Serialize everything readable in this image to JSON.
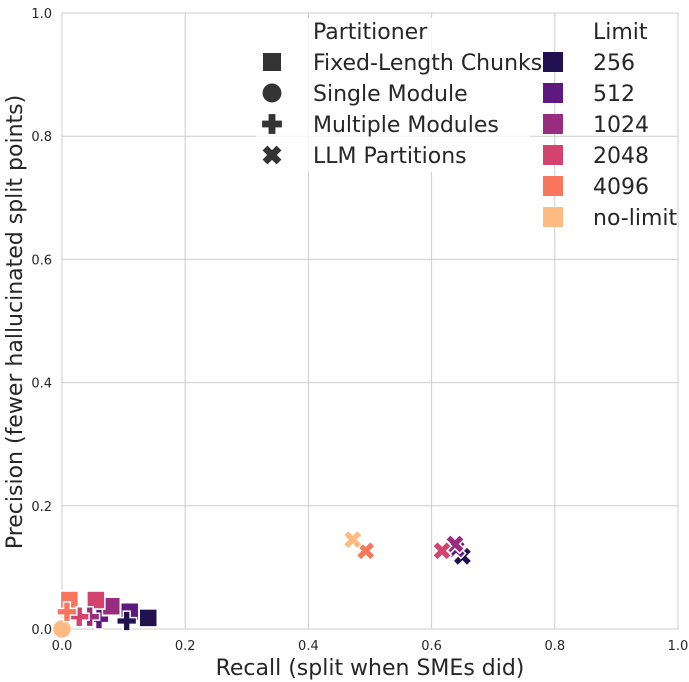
{
  "chart_data": {
    "type": "scatter",
    "title": "",
    "xlabel": "Recall (split when SMEs did)",
    "ylabel": "Precision (fewer hallucinated split points)",
    "xlim": [
      0,
      1
    ],
    "ylim": [
      0,
      1
    ],
    "xticks": [
      "0.0",
      "0.2",
      "0.4",
      "0.6",
      "0.8",
      "1.0"
    ],
    "yticks": [
      "0.0",
      "0.2",
      "0.4",
      "0.6",
      "0.8",
      "1.0"
    ],
    "grid": true,
    "legend": {
      "placement": "top-right",
      "partitioner_title": "Partitioner",
      "partitioners": [
        {
          "label": "Fixed-Length Chunks",
          "marker": "square"
        },
        {
          "label": "Single Module",
          "marker": "circle"
        },
        {
          "label": "Multiple Modules",
          "marker": "plus"
        },
        {
          "label": "LLM Partitions",
          "marker": "x"
        }
      ],
      "limit_title": "Limit",
      "limits": [
        {
          "label": "256",
          "color": "#221150"
        },
        {
          "label": "512",
          "color": "#5f187f"
        },
        {
          "label": "1024",
          "color": "#982d80"
        },
        {
          "label": "2048",
          "color": "#d3436e"
        },
        {
          "label": "4096",
          "color": "#f8765c"
        },
        {
          "label": "no-limit",
          "color": "#febb81"
        }
      ]
    },
    "points": [
      {
        "partitioner": "Fixed-Length Chunks",
        "limit": "256",
        "x": 0.14,
        "y": 0.018
      },
      {
        "partitioner": "Fixed-Length Chunks",
        "limit": "512",
        "x": 0.11,
        "y": 0.028
      },
      {
        "partitioner": "Fixed-Length Chunks",
        "limit": "1024",
        "x": 0.08,
        "y": 0.037
      },
      {
        "partitioner": "Fixed-Length Chunks",
        "limit": "2048",
        "x": 0.055,
        "y": 0.047
      },
      {
        "partitioner": "Fixed-Length Chunks",
        "limit": "4096",
        "x": 0.012,
        "y": 0.047
      },
      {
        "partitioner": "Single Module",
        "limit": "no-limit",
        "x": 0.0,
        "y": 0.0
      },
      {
        "partitioner": "Multiple Modules",
        "limit": "256",
        "x": 0.105,
        "y": 0.013
      },
      {
        "partitioner": "Multiple Modules",
        "limit": "512",
        "x": 0.06,
        "y": 0.016
      },
      {
        "partitioner": "Multiple Modules",
        "limit": "1024",
        "x": 0.045,
        "y": 0.02
      },
      {
        "partitioner": "Multiple Modules",
        "limit": "2048",
        "x": 0.028,
        "y": 0.02
      },
      {
        "partitioner": "Multiple Modules",
        "limit": "4096",
        "x": 0.008,
        "y": 0.028
      },
      {
        "partitioner": "LLM Partitions",
        "limit": "256",
        "x": 0.65,
        "y": 0.118
      },
      {
        "partitioner": "LLM Partitions",
        "limit": "512",
        "x": 0.64,
        "y": 0.13
      },
      {
        "partitioner": "LLM Partitions",
        "limit": "1024",
        "x": 0.638,
        "y": 0.138
      },
      {
        "partitioner": "LLM Partitions",
        "limit": "2048",
        "x": 0.617,
        "y": 0.127
      },
      {
        "partitioner": "LLM Partitions",
        "limit": "4096",
        "x": 0.493,
        "y": 0.127
      },
      {
        "partitioner": "LLM Partitions",
        "limit": "no-limit",
        "x": 0.472,
        "y": 0.145
      }
    ]
  }
}
